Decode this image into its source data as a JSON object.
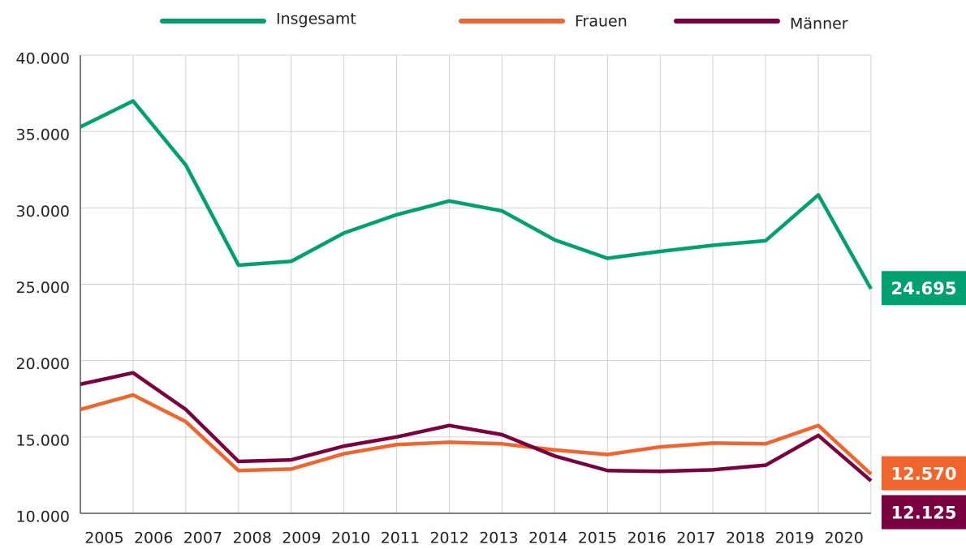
{
  "chart_data": {
    "type": "line",
    "categories": [
      "2005",
      "2006",
      "2007",
      "2008",
      "2009",
      "2010",
      "2011",
      "2012",
      "2013",
      "2014",
      "2015",
      "2016",
      "2017",
      "2018",
      "2019",
      "2020"
    ],
    "series": [
      {
        "name": "Insgesamt",
        "color": "#00a070",
        "values": [
          35300,
          37000,
          32800,
          26250,
          26500,
          28350,
          29550,
          30450,
          29800,
          27900,
          26700,
          27150,
          27550,
          27850,
          30850,
          24695
        ],
        "value_labels": [
          null,
          null,
          null,
          null,
          null,
          null,
          null,
          null,
          null,
          null,
          null,
          null,
          null,
          null,
          null,
          "24.695"
        ]
      },
      {
        "name": "Frauen",
        "color": "#f0642d",
        "values": [
          16800,
          17750,
          16000,
          12800,
          12900,
          13900,
          14500,
          14650,
          14550,
          14150,
          13850,
          14350,
          14600,
          14550,
          15750,
          12570
        ],
        "value_labels": [
          null,
          null,
          null,
          null,
          null,
          null,
          null,
          null,
          null,
          null,
          null,
          null,
          null,
          null,
          null,
          "12.570"
        ]
      },
      {
        "name": "Männer",
        "color": "#7a0040",
        "values": [
          18450,
          19200,
          16800,
          13400,
          13500,
          14400,
          15000,
          15750,
          15150,
          13750,
          12800,
          12750,
          12850,
          13150,
          15100,
          12125
        ],
        "value_labels": [
          null,
          null,
          null,
          null,
          null,
          null,
          null,
          null,
          null,
          null,
          null,
          null,
          null,
          null,
          null,
          "12.125"
        ]
      }
    ],
    "ylim": [
      10000,
      40000
    ],
    "yticks": [
      {
        "value": 10000,
        "label": "10.000"
      },
      {
        "value": 15000,
        "label": "15.000"
      },
      {
        "value": 20000,
        "label": "20.000"
      },
      {
        "value": 25000,
        "label": "25.000"
      },
      {
        "value": 30000,
        "label": "30.000"
      },
      {
        "value": 35000,
        "label": "35.000"
      },
      {
        "value": 40000,
        "label": "40.000"
      }
    ],
    "grid": true,
    "legend": "top"
  }
}
